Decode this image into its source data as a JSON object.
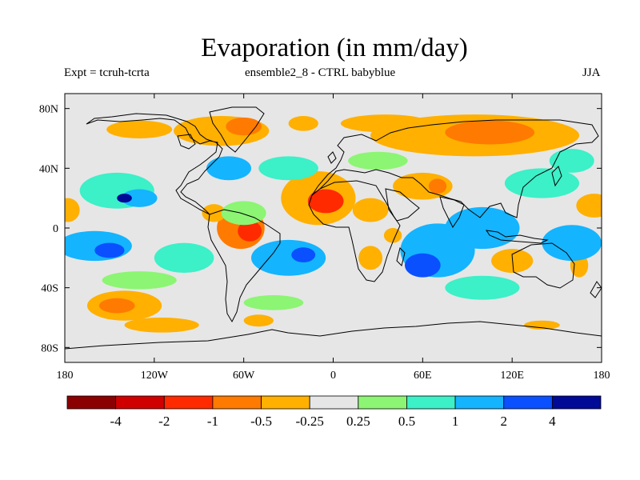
{
  "title": "Evaporation (in mm/day)",
  "subtitle_left": "Expt = tcruh-tcrta",
  "subtitle_center": "ensemble2_8 - CTRL babyblue",
  "subtitle_right": "JJA",
  "map": {
    "lon_range": [
      -180,
      180
    ],
    "lat_range": [
      -90,
      90
    ],
    "background_color": "#e6e6e6",
    "coastline_color": "#000000",
    "lat_ticks": [
      {
        "value": 80,
        "label": "80N"
      },
      {
        "value": 40,
        "label": "40N"
      },
      {
        "value": 0,
        "label": "0"
      },
      {
        "value": -40,
        "label": "40S"
      },
      {
        "value": -80,
        "label": "80S"
      }
    ],
    "lon_ticks": [
      {
        "value": -180,
        "label": "180"
      },
      {
        "value": -120,
        "label": "120W"
      },
      {
        "value": -60,
        "label": "60W"
      },
      {
        "value": 0,
        "label": "0"
      },
      {
        "value": 60,
        "label": "60E"
      },
      {
        "value": 120,
        "label": "120E"
      },
      {
        "value": 180,
        "label": "180"
      }
    ],
    "anomaly_blobs": [
      {
        "lon": -75,
        "lat": 65,
        "rx": 32,
        "ry": 10,
        "level": 4
      },
      {
        "lon": -60,
        "lat": 68,
        "rx": 12,
        "ry": 6,
        "level": 3
      },
      {
        "lon": -130,
        "lat": 66,
        "rx": 22,
        "ry": 6,
        "level": 4
      },
      {
        "lon": -20,
        "lat": 70,
        "rx": 10,
        "ry": 5,
        "level": 4
      },
      {
        "lon": 95,
        "lat": 62,
        "rx": 70,
        "ry": 14,
        "level": 4
      },
      {
        "lon": 105,
        "lat": 64,
        "rx": 30,
        "ry": 8,
        "level": 3
      },
      {
        "lon": 35,
        "lat": 70,
        "rx": 30,
        "ry": 6,
        "level": 4
      },
      {
        "lon": -10,
        "lat": 20,
        "rx": 25,
        "ry": 18,
        "level": 4
      },
      {
        "lon": -5,
        "lat": 18,
        "rx": 12,
        "ry": 8,
        "level": 2
      },
      {
        "lon": 25,
        "lat": 12,
        "rx": 12,
        "ry": 8,
        "level": 4
      },
      {
        "lon": 60,
        "lat": 28,
        "rx": 20,
        "ry": 9,
        "level": 4
      },
      {
        "lon": 70,
        "lat": 28,
        "rx": 6,
        "ry": 5,
        "level": 3
      },
      {
        "lon": 40,
        "lat": -5,
        "rx": 6,
        "ry": 5,
        "level": 4
      },
      {
        "lon": 25,
        "lat": -20,
        "rx": 8,
        "ry": 8,
        "level": 4
      },
      {
        "lon": -62,
        "lat": 0,
        "rx": 16,
        "ry": 14,
        "level": 3
      },
      {
        "lon": -56,
        "lat": -2,
        "rx": 8,
        "ry": 7,
        "level": 2
      },
      {
        "lon": -80,
        "lat": 10,
        "rx": 8,
        "ry": 6,
        "level": 4
      },
      {
        "lon": -140,
        "lat": -52,
        "rx": 25,
        "ry": 10,
        "level": 4
      },
      {
        "lon": -145,
        "lat": -52,
        "rx": 12,
        "ry": 5,
        "level": 3
      },
      {
        "lon": -115,
        "lat": -65,
        "rx": 25,
        "ry": 5,
        "level": 4
      },
      {
        "lon": -50,
        "lat": -62,
        "rx": 10,
        "ry": 4,
        "level": 4
      },
      {
        "lon": 90,
        "lat": -50,
        "rx": 14,
        "ry": 6,
        "level": 5
      },
      {
        "lon": 120,
        "lat": -22,
        "rx": 14,
        "ry": 8,
        "level": 4
      },
      {
        "lon": 165,
        "lat": -25,
        "rx": 6,
        "ry": 8,
        "level": 4
      },
      {
        "lon": 175,
        "lat": 15,
        "rx": 12,
        "ry": 8,
        "level": 4
      },
      {
        "lon": -178,
        "lat": 12,
        "rx": 8,
        "ry": 8,
        "level": 4
      },
      {
        "lon": -135,
        "lat": 30,
        "rx": 10,
        "ry": 6,
        "level": 5
      },
      {
        "lon": 140,
        "lat": -65,
        "rx": 12,
        "ry": 3,
        "level": 4
      },
      {
        "lon": -145,
        "lat": 25,
        "rx": 25,
        "ry": 12,
        "level": 7
      },
      {
        "lon": -130,
        "lat": 20,
        "rx": 12,
        "ry": 6,
        "level": 8
      },
      {
        "lon": -140,
        "lat": 20,
        "rx": 5,
        "ry": 3,
        "level": 10
      },
      {
        "lon": -160,
        "lat": -12,
        "rx": 25,
        "ry": 10,
        "level": 8
      },
      {
        "lon": -150,
        "lat": -15,
        "rx": 10,
        "ry": 5,
        "level": 9
      },
      {
        "lon": -100,
        "lat": -20,
        "rx": 20,
        "ry": 10,
        "level": 7
      },
      {
        "lon": -30,
        "lat": -20,
        "rx": 25,
        "ry": 12,
        "level": 8
      },
      {
        "lon": -20,
        "lat": -18,
        "rx": 8,
        "ry": 5,
        "level": 9
      },
      {
        "lon": 70,
        "lat": -15,
        "rx": 25,
        "ry": 18,
        "level": 8
      },
      {
        "lon": 60,
        "lat": -25,
        "rx": 12,
        "ry": 8,
        "level": 9
      },
      {
        "lon": 100,
        "lat": 0,
        "rx": 25,
        "ry": 14,
        "level": 8
      },
      {
        "lon": 160,
        "lat": -10,
        "rx": 20,
        "ry": 12,
        "level": 8
      },
      {
        "lon": 140,
        "lat": 30,
        "rx": 25,
        "ry": 10,
        "level": 7
      },
      {
        "lon": -70,
        "lat": 40,
        "rx": 15,
        "ry": 8,
        "level": 8
      },
      {
        "lon": -30,
        "lat": 40,
        "rx": 20,
        "ry": 8,
        "level": 7
      },
      {
        "lon": -60,
        "lat": 10,
        "rx": 15,
        "ry": 8,
        "level": 6
      },
      {
        "lon": 30,
        "lat": 45,
        "rx": 20,
        "ry": 6,
        "level": 6
      },
      {
        "lon": -130,
        "lat": -35,
        "rx": 25,
        "ry": 6,
        "level": 6
      },
      {
        "lon": -40,
        "lat": -50,
        "rx": 20,
        "ry": 5,
        "level": 6
      },
      {
        "lon": 100,
        "lat": -40,
        "rx": 25,
        "ry": 8,
        "level": 7
      },
      {
        "lon": 160,
        "lat": 45,
        "rx": 15,
        "ry": 8,
        "level": 7
      }
    ]
  },
  "colorbar": {
    "colors": [
      "#8b0000",
      "#d00000",
      "#ff2a00",
      "#ff7a00",
      "#ffb000",
      "#e6e6e6",
      "#8cf573",
      "#3cf0c8",
      "#14b4ff",
      "#0a50ff",
      "#000a96"
    ],
    "labels": [
      "-4",
      "-2",
      "-1",
      "-0.5",
      "-0.25",
      "0.25",
      "0.5",
      "1",
      "2",
      "4"
    ]
  }
}
